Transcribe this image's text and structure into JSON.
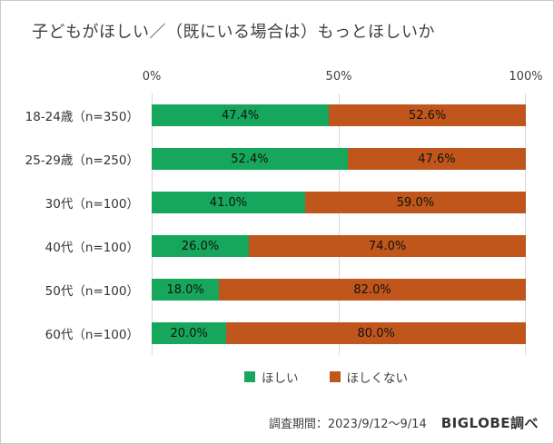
{
  "colors": {
    "want": "#16a75c",
    "not_want": "#c0561b",
    "gridline": "#d9d9d9"
  },
  "footer": {
    "survey_period": "調査期間：2023/9/12～9/14",
    "source": "BIGLOBE調べ"
  },
  "chart_data": {
    "type": "bar",
    "orientation": "horizontal",
    "stacked": true,
    "title": "子どもがほしい／（既にいる場合は）もっとほしいか",
    "categories": [
      "18-24歳（n=350）",
      "25-29歳（n=250）",
      "30代（n=100）",
      "40代（n=100）",
      "50代（n=100）",
      "60代（n=100）"
    ],
    "series": [
      {
        "name": "ほしい",
        "values": [
          47.4,
          52.4,
          41.0,
          26.0,
          18.0,
          20.0
        ]
      },
      {
        "name": "ほしくない",
        "values": [
          52.6,
          47.6,
          59.0,
          74.0,
          82.0,
          80.0
        ]
      }
    ],
    "xlim": [
      0,
      100
    ],
    "tick_labels": [
      "0%",
      "50%",
      "100%"
    ],
    "grid": true,
    "legend_position": "bottom",
    "value_label_format": "0.0%"
  }
}
